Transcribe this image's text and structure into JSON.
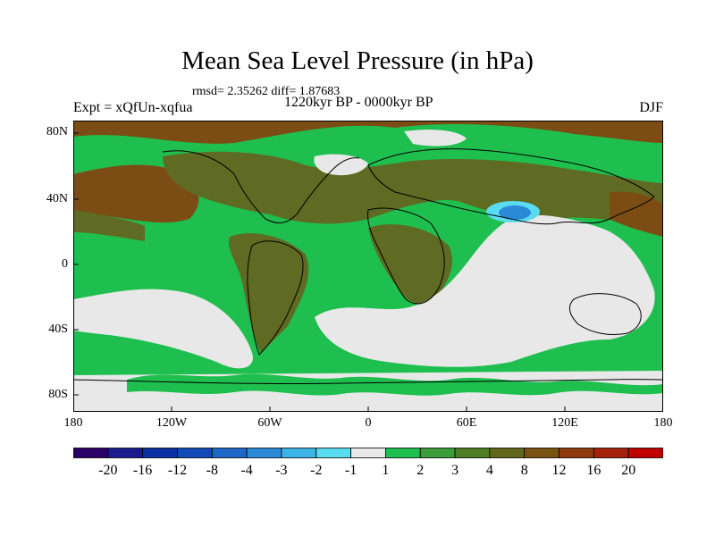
{
  "title": "Mean Sea Level Pressure (in hPa)",
  "stats": "rmsd= 2.35262 diff= 1.87683",
  "period": "1220kyr BP - 0000kyr BP",
  "experiment": "Expt = xQfUn-xqfua",
  "season": "DJF",
  "y_ticks": [
    "80N",
    "40N",
    "0",
    "40S",
    "80S"
  ],
  "x_ticks": [
    "180",
    "120W",
    "60W",
    "0",
    "60E",
    "120E",
    "180"
  ],
  "colorbar": {
    "colors": [
      "#2a0068",
      "#1b1a8e",
      "#0c2fa6",
      "#1249b8",
      "#1e66c8",
      "#2b8ad8",
      "#3cb4e8",
      "#5adcf0",
      "#e8e8e8",
      "#1fbf4f",
      "#3a9c3a",
      "#4d7d23",
      "#60661a",
      "#7a5211",
      "#8e3a0d",
      "#a6210a",
      "#c00000"
    ],
    "labels": [
      "-20",
      "-16",
      "-12",
      "-8",
      "-4",
      "-3",
      "-2",
      "-1",
      "1",
      "2",
      "3",
      "4",
      "8",
      "12",
      "16",
      "20"
    ]
  },
  "map_colors": {
    "green": "#1fbf4f",
    "olive": "#5f6a22",
    "brown": "#7b4d14",
    "grey": "#e8e8e8",
    "blue": "#2b8ad8"
  }
}
